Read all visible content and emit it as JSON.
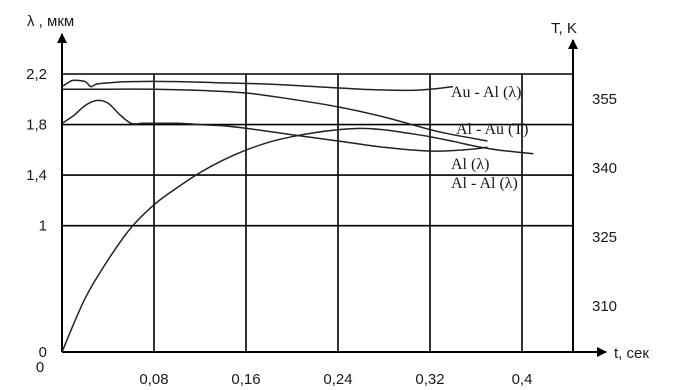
{
  "chart_data": {
    "type": "line",
    "xlabel": "t, сек",
    "ylabel": "λ , мкм",
    "y2label": "T,  K",
    "xlim": [
      0,
      0.44
    ],
    "ylim": [
      0,
      2.4
    ],
    "y2lim": [
      300,
      355
    ],
    "x_ticks": [
      "0,08",
      "0,16",
      "0,24",
      "0,32",
      "0,4"
    ],
    "y_ticks": [
      "0",
      "1",
      "1,4",
      "1,8",
      "2,2"
    ],
    "y2_ticks": [
      "310",
      "325",
      "340",
      "355"
    ],
    "grid": true,
    "series": [
      {
        "name": "Au - Al (λ)",
        "axis": "left",
        "x": [
          0,
          0.005,
          0.01,
          0.02,
          0.025,
          0.03,
          0.04,
          0.06,
          0.1,
          0.14,
          0.18,
          0.22,
          0.26,
          0.3,
          0.32,
          0.34
        ],
        "y": [
          2.1,
          2.13,
          2.15,
          2.14,
          2.1,
          2.12,
          2.13,
          2.14,
          2.14,
          2.13,
          2.12,
          2.1,
          2.08,
          2.07,
          2.08,
          2.1
        ]
      },
      {
        "name": "Al - Au (T)",
        "axis": "right",
        "x": [
          0,
          0.02,
          0.04,
          0.06,
          0.08,
          0.1,
          0.12,
          0.14,
          0.16,
          0.18,
          0.2,
          0.22,
          0.24,
          0.26,
          0.28,
          0.3,
          0.32,
          0.34,
          0.36,
          0.38,
          0.41
        ],
        "y": [
          300,
          311.6,
          320,
          327,
          332,
          335.7,
          339,
          341.7,
          343.9,
          345.6,
          346.8,
          347.7,
          348.3,
          348.6,
          348.3,
          347.6,
          346.8,
          345.8,
          344.7,
          343.9,
          343.1
        ]
      },
      {
        "name": "Al (λ)",
        "axis": "left",
        "x": [
          0,
          0.04,
          0.08,
          0.12,
          0.16,
          0.2,
          0.24,
          0.28,
          0.32,
          0.34,
          0.37
        ],
        "y": [
          2.08,
          2.08,
          2.08,
          2.07,
          2.05,
          2.0,
          1.94,
          1.86,
          1.76,
          1.72,
          1.67
        ]
      },
      {
        "name": "Al - Al (λ)",
        "axis": "left",
        "x": [
          0,
          0.01,
          0.02,
          0.03,
          0.04,
          0.05,
          0.06,
          0.07,
          0.08,
          0.1,
          0.12,
          0.14,
          0.16,
          0.2,
          0.24,
          0.28,
          0.32,
          0.35,
          0.37
        ],
        "y": [
          1.81,
          1.87,
          1.95,
          1.99,
          1.97,
          1.88,
          1.81,
          1.81,
          1.81,
          1.81,
          1.8,
          1.79,
          1.77,
          1.72,
          1.67,
          1.62,
          1.59,
          1.6,
          1.62
        ]
      }
    ]
  }
}
